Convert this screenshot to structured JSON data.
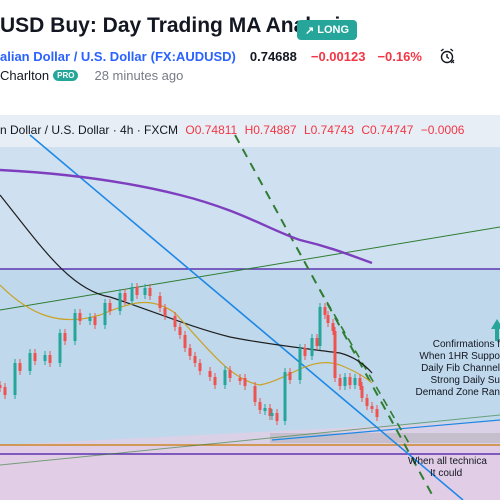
{
  "header": {
    "title": "USD Buy: Day Trading MA Analysis",
    "badge": "LONG",
    "symbol_name": "alian Dollar / U.S. Dollar",
    "symbol_code": "(FX:AUDUSD)",
    "price": "0.74688",
    "change": "−0.00123",
    "change_percent": "−0.16%",
    "author": "Charlton",
    "author_badge": "PRO",
    "posted": "28 minutes ago"
  },
  "chart": {
    "legend_symbol": "n Dollar / U.S. Dollar · 4h · FXCM",
    "open": "O0.74811",
    "high": "H0.74887",
    "low": "L0.74743",
    "close": "C0.74747",
    "change": "−0.0006",
    "annotation_right": [
      "Confirmations f",
      "When 1HR Suppo",
      "Daily Fib Channel",
      "Strong Daily Su",
      "Demand Zone Ran"
    ],
    "annotation_bottom": [
      "When all technica",
      "It could"
    ],
    "colors": {
      "bull": "#26a69a",
      "bear": "#ef5350",
      "ma_long": "#7e3fbf",
      "ma_mid": "#1f1f1f",
      "ma_short": "#c9a227",
      "trend_blue": "#1e88e5",
      "trend_green": "#2e7d32",
      "zone_purple": "#5e35b1",
      "zone_orange": "#c77800",
      "arrow_green": "#26a69a"
    }
  }
}
